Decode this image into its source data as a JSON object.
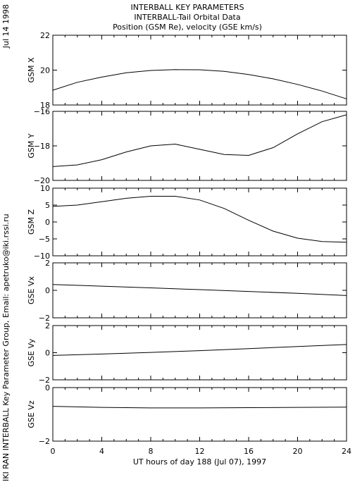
{
  "header": {
    "title_lines": [
      "INTERBALL KEY PARAMETERS",
      "INTERBALL-Tail Orbital Data",
      "Position (GSM Re), velocity (GSE km/s)"
    ]
  },
  "side_date": "Jul 14 1998",
  "side_credit": "IKI RAN INTERBALL Key Parameter Group, Email: apetruko@iki.rssi.ru",
  "chart_data": [
    {
      "type": "line",
      "ylabel": "GSM X",
      "ylim": [
        18,
        22
      ],
      "yticks": [
        18,
        20,
        22
      ],
      "ytick_labels": [
        "18",
        "20",
        "22"
      ],
      "x": [
        0,
        2,
        4,
        6,
        8,
        10,
        12,
        14,
        16,
        18,
        20,
        22,
        24
      ],
      "values": [
        18.85,
        19.3,
        19.6,
        19.85,
        19.98,
        20.03,
        20.02,
        19.93,
        19.75,
        19.5,
        19.18,
        18.8,
        18.35
      ]
    },
    {
      "type": "line",
      "ylabel": "GSM Y",
      "ylim": [
        -20,
        -16
      ],
      "yticks": [
        -20,
        -18,
        -16
      ],
      "ytick_labels": [
        "−20",
        "−18",
        "−16"
      ],
      "x": [
        0,
        2,
        4,
        6,
        8,
        10,
        12,
        14,
        16,
        18,
        20,
        22,
        24
      ],
      "values": [
        -19.2,
        -19.1,
        -18.8,
        -18.35,
        -18.0,
        -17.9,
        -18.2,
        -18.5,
        -18.55,
        -18.1,
        -17.3,
        -16.6,
        -16.2
      ]
    },
    {
      "type": "line",
      "ylabel": "GSM Z",
      "ylim": [
        -10,
        10
      ],
      "yticks": [
        -10,
        -5,
        0,
        5,
        10
      ],
      "ytick_labels": [
        "−10",
        "−5",
        "0",
        "5",
        "10"
      ],
      "x": [
        0,
        2,
        4,
        6,
        8,
        10,
        12,
        14,
        16,
        18,
        20,
        22,
        24
      ],
      "values": [
        4.6,
        5.0,
        6.0,
        7.0,
        7.6,
        7.6,
        6.5,
        4.0,
        0.5,
        -2.7,
        -4.8,
        -5.8,
        -6.0
      ]
    },
    {
      "type": "line",
      "ylabel": "GSE Vx",
      "ylim": [
        -2,
        2
      ],
      "yticks": [
        -2,
        0,
        2
      ],
      "ytick_labels": [
        "−2",
        "0",
        "2"
      ],
      "x": [
        0,
        4,
        8,
        12,
        16,
        20,
        24
      ],
      "values": [
        0.42,
        0.3,
        0.18,
        0.05,
        -0.08,
        -0.22,
        -0.38
      ]
    },
    {
      "type": "line",
      "ylabel": "GSE Vy",
      "ylim": [
        -2,
        2
      ],
      "yticks": [
        -2,
        0,
        2
      ],
      "ytick_labels": [
        "−2",
        "0",
        "2"
      ],
      "x": [
        0,
        4,
        8,
        12,
        16,
        20,
        24
      ],
      "values": [
        -0.2,
        -0.1,
        0.02,
        0.15,
        0.3,
        0.45,
        0.6
      ]
    },
    {
      "type": "line",
      "ylabel": "GSE Vz",
      "ylim": [
        -2,
        0
      ],
      "yticks": [
        -2,
        0
      ],
      "ytick_labels": [
        "−2",
        "0"
      ],
      "x": [
        0,
        4,
        8,
        12,
        16,
        20,
        24
      ],
      "values": [
        -0.7,
        -0.74,
        -0.76,
        -0.76,
        -0.75,
        -0.74,
        -0.73
      ],
      "xlabel": "UT hours of day 188 (Jul 07), 1997",
      "xlim": [
        0,
        24
      ],
      "xticks": [
        0,
        4,
        8,
        12,
        16,
        20,
        24
      ],
      "xtick_labels": [
        "0",
        "4",
        "8",
        "12",
        "16",
        "20",
        "24"
      ]
    }
  ]
}
